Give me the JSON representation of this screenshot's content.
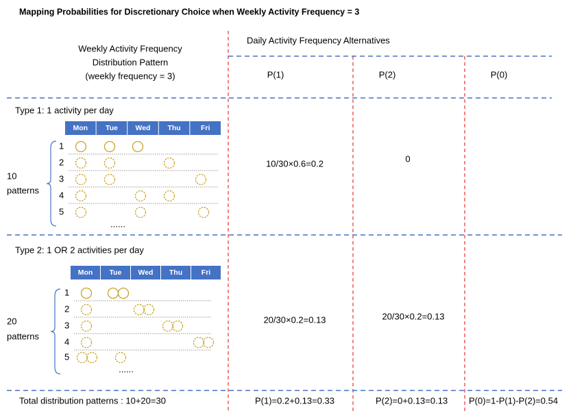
{
  "title": "Mapping Probabilities for Discretionary Choice when Weekly Activity Frequency = 3",
  "header": {
    "pattern_label": [
      "Weekly Activity Frequency",
      "Distribution Pattern",
      "(weekly frequency = 3)"
    ],
    "alternatives_title": "Daily Activity Frequency Alternatives",
    "alternatives": [
      "P(1)",
      "P(2)",
      "P(0)"
    ]
  },
  "types": [
    {
      "label": "Type 1: 1 activity per day",
      "days": [
        "Mon",
        "Tue",
        "Wed",
        "Thu",
        "Fri"
      ],
      "rows": [
        "1",
        "2",
        "3",
        "4",
        "5"
      ],
      "ellipsis": "......",
      "count": "10",
      "count_label": "patterns",
      "cells": [
        "10/30×0.6=0.2",
        "0"
      ]
    },
    {
      "label": "Type 2: 1 OR 2 activities per day",
      "days": [
        "Mon",
        "Tue",
        "Wed",
        "Thu",
        "Fri"
      ],
      "rows": [
        "1",
        "2",
        "3",
        "4",
        "5"
      ],
      "ellipsis": "......",
      "count": "20",
      "count_label": "patterns",
      "cells": [
        "20/30×0.2=0.13",
        "20/30×0.2=0.13"
      ]
    }
  ],
  "totals": [
    "Total distribution patterns : 10+20=30",
    "P(1)=0.2+0.13=0.33",
    "P(2)=0+0.13=0.13",
    "P(0)=1-P(1)-P(2)=0.54"
  ]
}
